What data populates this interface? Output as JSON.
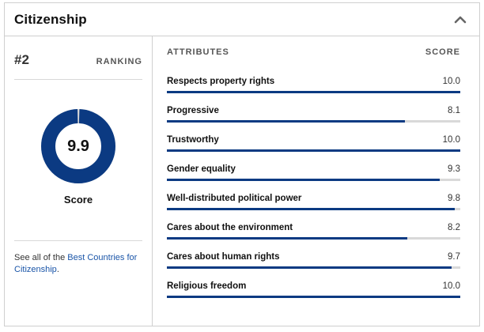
{
  "header": {
    "title": "Citizenship"
  },
  "ranking": {
    "value": "#2",
    "label": "RANKING"
  },
  "score": {
    "value": "9.9",
    "caption": "Score",
    "fraction": 0.99,
    "color": "#0b3a82",
    "track_color": "#d9d9d9"
  },
  "footer": {
    "prefix": "See all of the ",
    "link_text": "Best Countries for Citizenship",
    "suffix": "."
  },
  "attributes": {
    "column_label": "ATTRIBUTES",
    "score_label": "SCORE",
    "items": [
      {
        "label": "Respects property rights",
        "score": "10.0",
        "value": 10.0
      },
      {
        "label": "Progressive",
        "score": "8.1",
        "value": 8.1
      },
      {
        "label": "Trustworthy",
        "score": "10.0",
        "value": 10.0
      },
      {
        "label": "Gender equality",
        "score": "9.3",
        "value": 9.3
      },
      {
        "label": "Well-distributed political power",
        "score": "9.8",
        "value": 9.8
      },
      {
        "label": "Cares about the environment",
        "score": "8.2",
        "value": 8.2
      },
      {
        "label": "Cares about human rights",
        "score": "9.7",
        "value": 9.7
      },
      {
        "label": "Religious freedom",
        "score": "10.0",
        "value": 10.0
      }
    ],
    "max": 10
  }
}
